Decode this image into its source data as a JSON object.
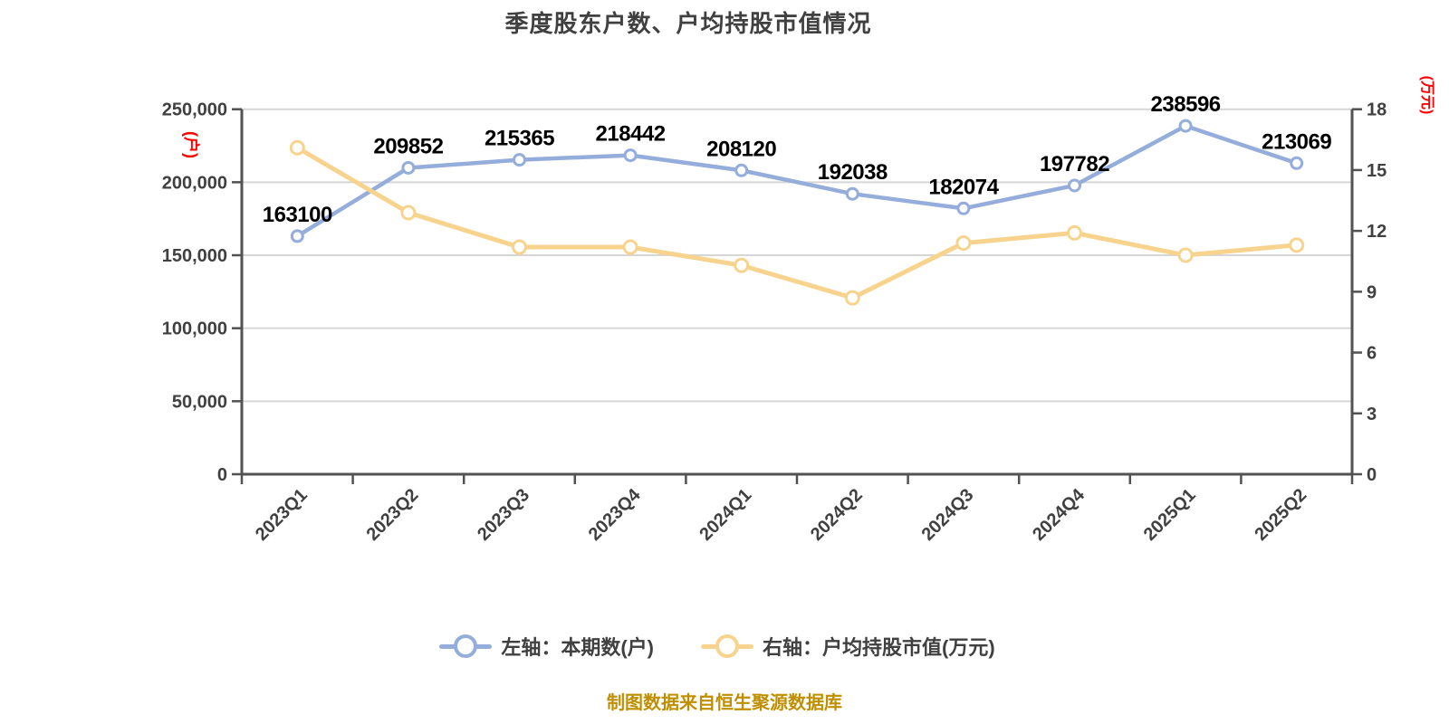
{
  "chart_data": {
    "type": "line",
    "title": "季度股东户数、户均持股市值情况",
    "source": "制图数据来自恒生聚源数据库",
    "categories": [
      "2023Q1",
      "2023Q2",
      "2023Q3",
      "2023Q4",
      "2024Q1",
      "2024Q2",
      "2024Q3",
      "2024Q4",
      "2025Q1",
      "2025Q2"
    ],
    "series": [
      {
        "name": "左轴：本期数(户)",
        "axis": "left",
        "color": "#94ADDB",
        "marker_fill": "#FFFFFF",
        "data_labels": true,
        "values": [
          163100,
          209852,
          215365,
          218442,
          208120,
          192038,
          182074,
          197782,
          238596,
          213069
        ]
      },
      {
        "name": "右轴：户均持股市值(万元)",
        "axis": "right",
        "color": "#F7D38E",
        "marker_fill": "#FFFFFF",
        "data_labels": false,
        "values": [
          16.1,
          12.9,
          11.2,
          11.2,
          10.3,
          8.7,
          11.4,
          11.9,
          10.8,
          11.3
        ]
      }
    ],
    "left_axis": {
      "min": 0,
      "max": 250000,
      "step": 50000,
      "unit": "(户)",
      "unit_color": "#FF0000",
      "tick_labels": [
        "0",
        "50,000",
        "100,000",
        "150,000",
        "200,000",
        "250,000"
      ]
    },
    "right_axis": {
      "min": 0,
      "max": 18,
      "step": 3,
      "unit": "(万元)",
      "unit_color": "#FF0000",
      "tick_labels": [
        "0",
        "3",
        "6",
        "9",
        "12",
        "15",
        "18"
      ]
    },
    "x_label_rotation": -45,
    "grid": true,
    "legend_position": "bottom",
    "colors": {
      "title": "#404040",
      "axis_line": "#525252",
      "gridline": "#D6D6D6",
      "tick_label": "#404040",
      "data_label": "#000000",
      "source": "#BF8F00",
      "background": "#FFFFFF"
    }
  }
}
